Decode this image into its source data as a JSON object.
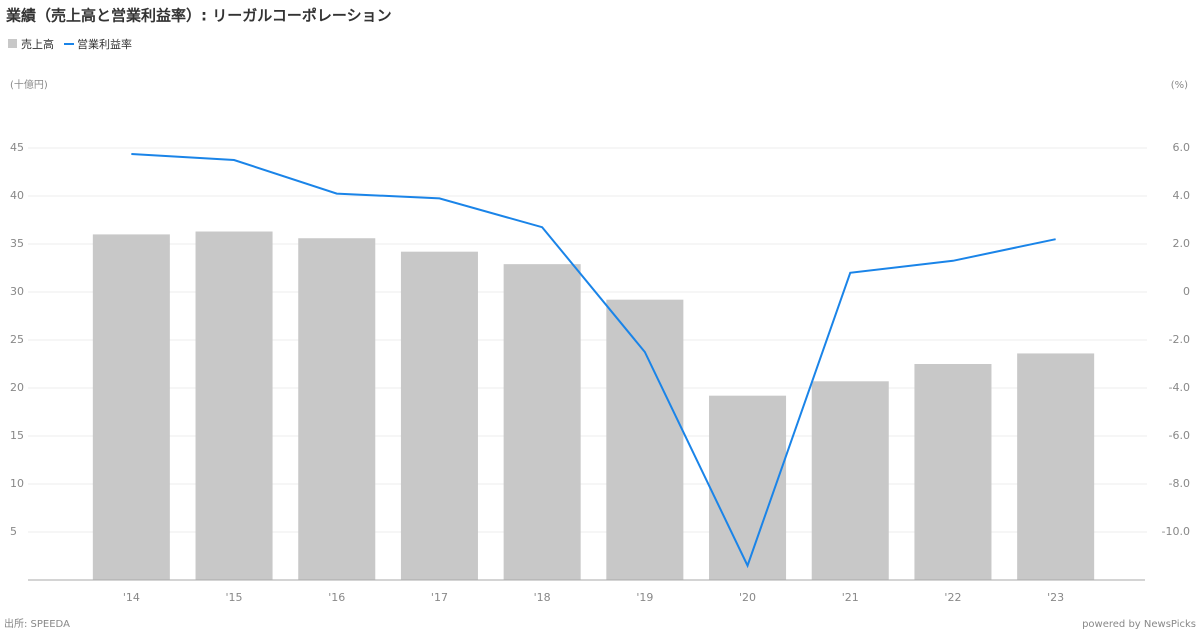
{
  "chart_data": {
    "type": "bar_line",
    "title": "業績（売上高と営業利益率）: リーガルコーポレーション",
    "y_label": "(十億円)",
    "y2_label": "(%)",
    "source": "出所: SPEEDA",
    "credit": "powered by NewsPicks",
    "categories": [
      "'14",
      "'15",
      "'16",
      "'17",
      "'18",
      "'19",
      "'20",
      "'21",
      "'22",
      "'23"
    ],
    "series": [
      {
        "name": "売上高",
        "type": "bar",
        "color": "#c8c8c8",
        "values": [
          36.0,
          36.3,
          35.6,
          34.2,
          32.9,
          29.2,
          19.2,
          20.7,
          22.5,
          23.6
        ]
      },
      {
        "name": "営業利益率",
        "type": "line",
        "axis": "y2",
        "color": "#1a84e8",
        "values": [
          5.75,
          5.5,
          4.1,
          3.9,
          2.7,
          -2.5,
          -11.4,
          0.8,
          1.3,
          2.2
        ]
      }
    ],
    "ylim": [
      0,
      50
    ],
    "yticks": [
      5,
      10,
      15,
      20,
      25,
      30,
      35,
      40,
      45
    ],
    "y2lim": [
      -12,
      8
    ],
    "y2ticks": [
      {
        "value": -10,
        "label": "-10.0"
      },
      {
        "value": -8,
        "label": "-8.0"
      },
      {
        "value": -6,
        "label": "-6.0"
      },
      {
        "value": -4,
        "label": "-4.0"
      },
      {
        "value": -2,
        "label": "-2.0"
      },
      0,
      {
        "value": 2,
        "label": "2.0"
      },
      {
        "value": 4,
        "label": "4.0"
      },
      {
        "value": 6,
        "label": "6.0"
      }
    ],
    "grid": true
  }
}
